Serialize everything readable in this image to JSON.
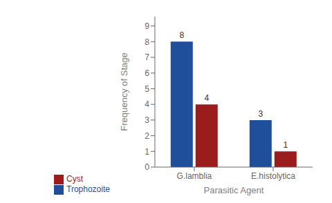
{
  "chart_data": {
    "type": "bar",
    "xlabel": "Parasitic Agent",
    "ylabel": "Frequency of Stage",
    "categories": [
      "G.lamblia",
      "E.histolytica"
    ],
    "series": [
      {
        "name": "Trophozoite",
        "color": "#1F4E9B",
        "values": [
          8,
          3
        ]
      },
      {
        "name": "Cyst",
        "color": "#9B1C1C",
        "values": [
          4,
          1
        ]
      }
    ],
    "ylim": [
      0,
      9.6
    ],
    "yticks": [
      0,
      1,
      2,
      3,
      4,
      5,
      6,
      7,
      8,
      9
    ],
    "grid": false,
    "legend": "bottom",
    "data_labels": true
  }
}
